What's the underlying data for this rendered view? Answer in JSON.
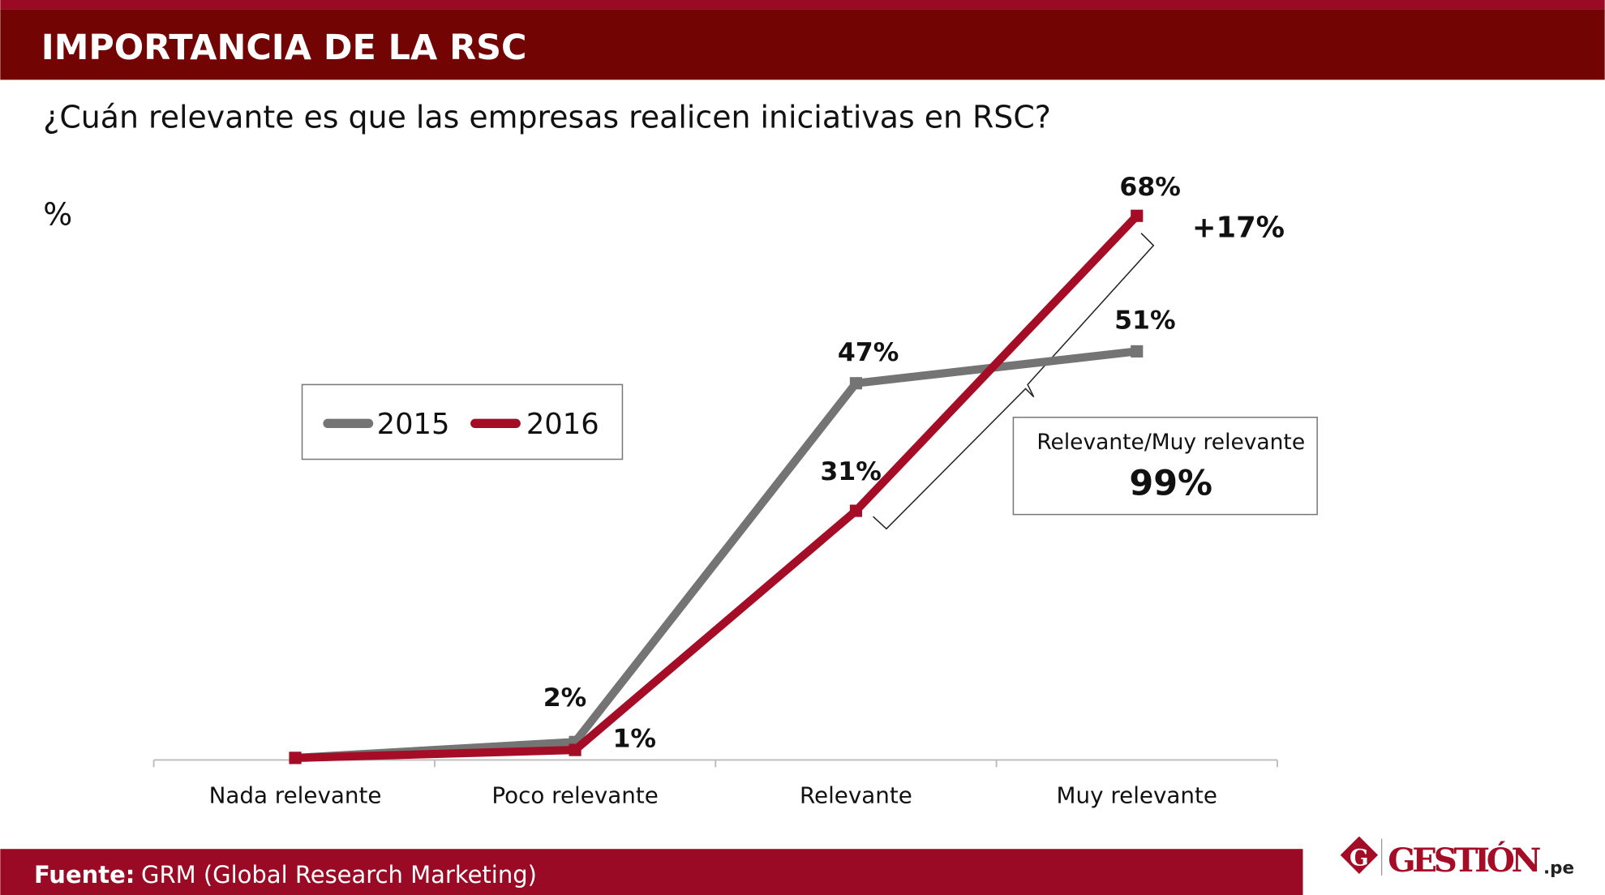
{
  "header": {
    "title": "IMPORTANCIA DE LA RSC"
  },
  "footer": {
    "source_label": "Fuente:",
    "source_text": "GRM (Global Research Marketing)"
  },
  "logo": {
    "text": "GESTIÓN",
    "suffix": ".pe",
    "mark": "G"
  },
  "colors": {
    "header_dark": "#730404",
    "header_strip": "#9a0a24",
    "series_2015": "#747474",
    "series_2016": "#a50d26",
    "footer": "#9a0a24"
  },
  "chart_data": {
    "type": "line",
    "title": "¿Cuán relevante es que las empresas realicen iniciativas en RSC?",
    "ylabel": "%",
    "categories": [
      "Nada relevante",
      "Poco relevante",
      "Relevante",
      "Muy relevante"
    ],
    "ylim": [
      0,
      70
    ],
    "grid": false,
    "legend_placement": "center-left",
    "series": [
      {
        "name": "2015",
        "values": [
          0,
          2,
          47,
          51
        ],
        "labels": [
          "",
          "2%",
          "47%",
          "51%"
        ]
      },
      {
        "name": "2016",
        "values": [
          0,
          1,
          31,
          68
        ],
        "labels": [
          "",
          "1%",
          "31%",
          "68%"
        ]
      }
    ],
    "annotations": {
      "change": "+17%",
      "box_label": "Relevante/Muy relevante",
      "box_value": "99%"
    }
  }
}
